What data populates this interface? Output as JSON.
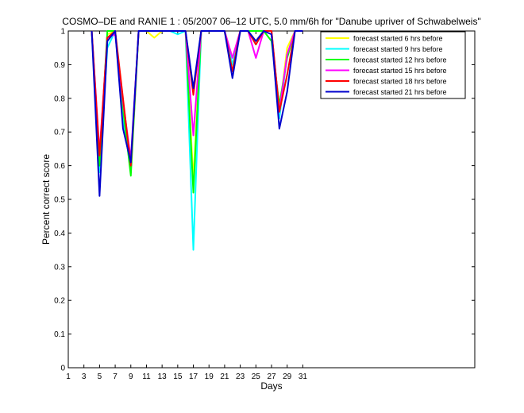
{
  "chart_data": {
    "type": "line",
    "title": "COSMO–DE and RANIE 1 : 05/2007 06–12 UTC, 5.0 mm/6h for \"Danube upriver of Schwabelweis\"",
    "xlabel": "Days",
    "ylabel": "Percent correct score",
    "xlim": [
      1,
      53
    ],
    "ylim": [
      0,
      1
    ],
    "xticks": [
      1,
      3,
      5,
      7,
      9,
      11,
      13,
      15,
      17,
      19,
      21,
      23,
      25,
      27,
      29,
      31
    ],
    "yticks": [
      0,
      0.1,
      0.2,
      0.3,
      0.4,
      0.5,
      0.6,
      0.7,
      0.8,
      0.9,
      1
    ],
    "ytick_labels": [
      "0",
      "0.1",
      "0.2",
      "0.3",
      "0.4",
      "0.5",
      "0.6",
      "0.7",
      "0.8",
      "0.9",
      "1"
    ],
    "grid": false,
    "legend_position": "top-right",
    "x": [
      4,
      5,
      6,
      7,
      8,
      9,
      10,
      11,
      12,
      13,
      14,
      15,
      16,
      17,
      18,
      19,
      20,
      21,
      22,
      23,
      24,
      25,
      26,
      27,
      28,
      29,
      30,
      31
    ],
    "series": [
      {
        "name": "forecast started 6 hrs before",
        "color": "#ffff00",
        "values": [
          1,
          0.62,
          0.99,
          1,
          0.76,
          0.6,
          1,
          1,
          0.98,
          1,
          1,
          1,
          1,
          0.56,
          1,
          1,
          1,
          1,
          0.92,
          1,
          1,
          0.97,
          1,
          1,
          0.76,
          0.95,
          1,
          1
        ]
      },
      {
        "name": "forecast started 9 hrs before",
        "color": "#00ffff",
        "values": [
          1,
          0.58,
          0.95,
          1,
          0.74,
          0.59,
          1,
          1,
          1,
          1,
          1,
          0.99,
          1,
          0.35,
          1,
          1,
          1,
          1,
          0.9,
          1,
          1,
          0.96,
          1,
          1,
          0.74,
          0.93,
          1,
          1
        ]
      },
      {
        "name": "forecast started 12 hrs before",
        "color": "#00ff00",
        "values": [
          1,
          0.6,
          1,
          1,
          0.77,
          0.57,
          1,
          1,
          1,
          1,
          1,
          1,
          1,
          0.52,
          1,
          1,
          1,
          1,
          0.88,
          1,
          1,
          1,
          1,
          0.97,
          0.78,
          0.92,
          1,
          1
        ]
      },
      {
        "name": "forecast started 15 hrs before",
        "color": "#ff00ff",
        "values": [
          1,
          0.64,
          0.98,
          0.99,
          0.79,
          0.62,
          1,
          1,
          1,
          1,
          1,
          1,
          1,
          0.69,
          1,
          1,
          1,
          1,
          0.92,
          1,
          1,
          0.92,
          1,
          1,
          0.76,
          0.93,
          1,
          1
        ]
      },
      {
        "name": "forecast started 18 hrs before",
        "color": "#ff0000",
        "values": [
          1,
          0.63,
          0.98,
          1,
          0.8,
          0.6,
          1,
          1,
          1,
          1,
          1,
          1,
          1,
          0.81,
          1,
          1,
          1,
          1,
          0.88,
          1,
          1,
          0.96,
          1,
          1,
          0.76,
          0.87,
          1,
          1
        ]
      },
      {
        "name": "forecast started 21 hrs before",
        "color": "#0000cc",
        "values": [
          1,
          0.51,
          0.97,
          1,
          0.71,
          0.61,
          1,
          1,
          1,
          1,
          1,
          1,
          1,
          0.83,
          1,
          1,
          1,
          1,
          0.86,
          1,
          1,
          0.97,
          1,
          0.99,
          0.71,
          0.82,
          1,
          1
        ]
      }
    ]
  }
}
